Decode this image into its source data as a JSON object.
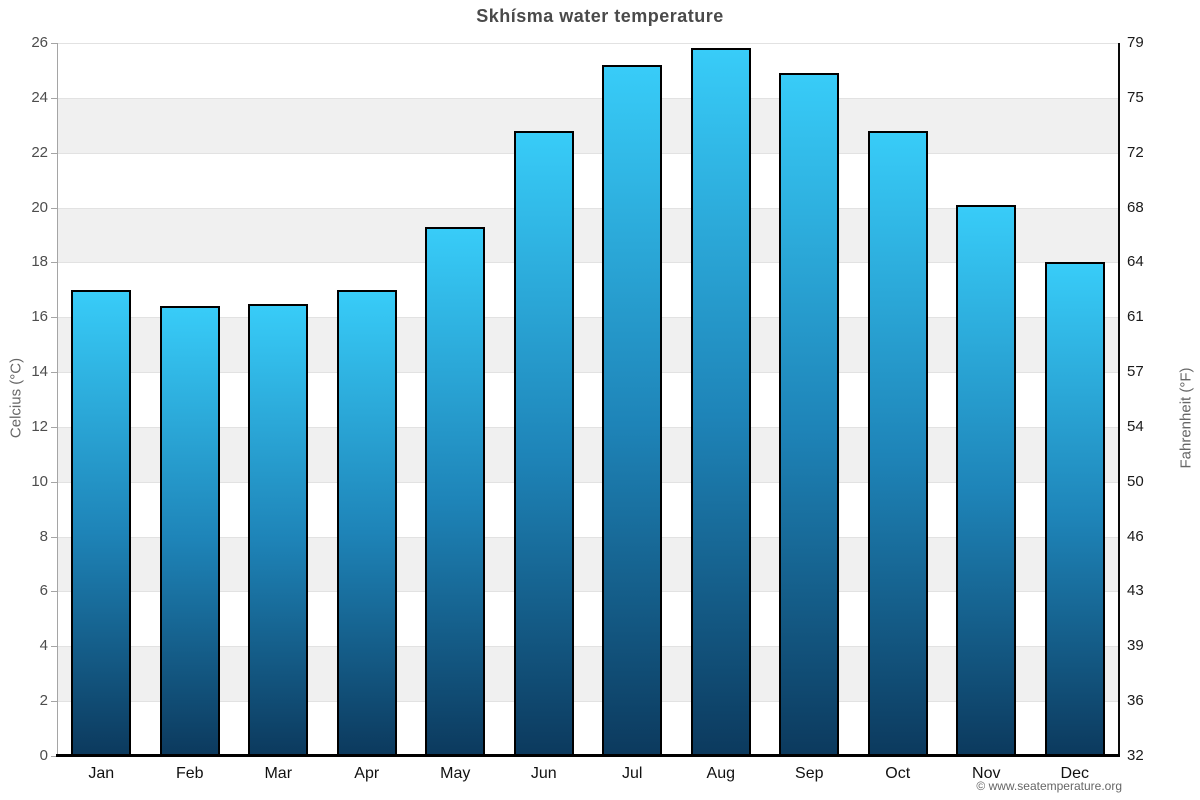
{
  "footer": {
    "text": "© www.seatemperature.org"
  },
  "colors": {
    "bar_top": "#38CCF8",
    "bar_mid": "#1E84B8",
    "bar_bottom": "#0C3A5E",
    "bar_border": "#000000",
    "band": "#F0F0F0",
    "gridline": "#E2E2E2",
    "left_axis_line": "#A5A5A5",
    "right_axis_line": "#0A0A0A",
    "baseline": "#000000",
    "title_color": "#4A4A4A",
    "tick_label_left": "#4D4D4D",
    "tick_label_right": "#1A1A1A",
    "month_label": "#111111",
    "axis_title_color": "#666666",
    "footer_color": "#666666"
  },
  "chart_data": {
    "type": "bar",
    "title": "Skhísma water temperature",
    "xlabel": "",
    "ylabel_left": "Celcius (°C)",
    "ylabel_right": "Fahrenheit (°F)",
    "categories": [
      "Jan",
      "Feb",
      "Mar",
      "Apr",
      "May",
      "Jun",
      "Jul",
      "Aug",
      "Sep",
      "Oct",
      "Nov",
      "Dec"
    ],
    "values": [
      17.0,
      16.4,
      16.5,
      17.0,
      19.3,
      22.8,
      25.2,
      25.8,
      24.9,
      22.8,
      20.1,
      18.0
    ],
    "unit": "°C",
    "ylim": [
      0,
      26
    ],
    "yticks_celsius": [
      0,
      2,
      4,
      6,
      8,
      10,
      12,
      14,
      16,
      18,
      20,
      22,
      24,
      26
    ],
    "yticks_fahrenheit_labels": [
      "32",
      "36",
      "39",
      "43",
      "46",
      "50",
      "54",
      "57",
      "61",
      "64",
      "68",
      "72",
      "75",
      "79"
    ],
    "grid": true,
    "alternating_bands": true,
    "legend": "none"
  }
}
